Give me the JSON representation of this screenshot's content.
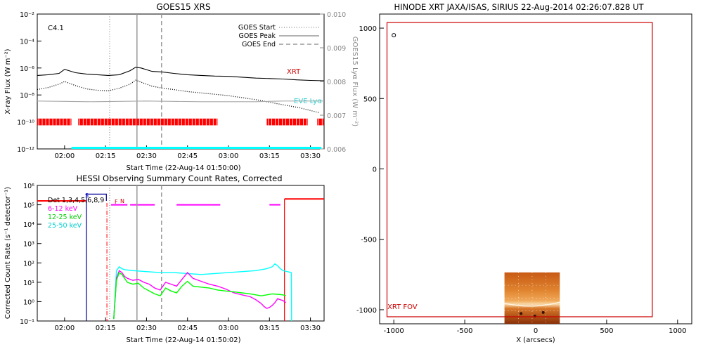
{
  "chart_data": [
    {
      "type": "line",
      "title": "GOES15 XRS",
      "xlabel": "Start Time (22-Aug-14 01:50:00)",
      "ylabel": "X-ray Flux (W m⁻²)",
      "ylabel_right": "GOES15 Lyα Flux (W m⁻²)",
      "class_label": "C4.1",
      "xlim_min": [
        0,
        105
      ],
      "x_tick_labels": [
        "02:00",
        "02:15",
        "02:30",
        "02:45",
        "03:00",
        "03:15",
        "03:30"
      ],
      "x_ticks_min": [
        10,
        25,
        40,
        55,
        70,
        85,
        100
      ],
      "ylim_log": [
        -12,
        -2
      ],
      "y_tick_labels": [
        {
          "label": "10⁻²",
          "exp": -2
        },
        {
          "label": "10⁻⁴",
          "exp": -4
        },
        {
          "label": "10⁻⁶",
          "exp": -6
        },
        {
          "label": "10⁻⁸",
          "exp": -8
        },
        {
          "label": "10⁻¹⁰",
          "exp": -10
        },
        {
          "label": "10⁻¹²",
          "exp": -12
        }
      ],
      "right_ylim": [
        0.006,
        0.01
      ],
      "right_tick_labels": [
        "0.010",
        "0.009",
        "0.008",
        "0.007",
        "0.006"
      ],
      "right_ticks": [
        0.01,
        0.009,
        0.008,
        0.007,
        0.006
      ],
      "legend": [
        {
          "label": "GOES Start",
          "style": "dotted"
        },
        {
          "label": "GOES Peak",
          "style": "solid"
        },
        {
          "label": "GOES End",
          "style": "dashed"
        }
      ],
      "goes_start_min": 26.5,
      "goes_peak_min": 36.5,
      "goes_end_min": 45.5,
      "series": [
        {
          "name": "XRT",
          "color": "#000000",
          "style": "solid",
          "label_color": "#cc0000",
          "x": [
            0,
            4,
            8,
            10,
            14,
            18,
            22,
            26,
            30,
            34,
            36,
            38,
            42,
            46,
            50,
            55,
            60,
            65,
            70,
            75,
            80,
            85,
            90,
            95,
            100,
            105
          ],
          "log_y": [
            -6.55,
            -6.5,
            -6.4,
            -6.1,
            -6.35,
            -6.45,
            -6.5,
            -6.55,
            -6.5,
            -6.2,
            -5.95,
            -6.0,
            -6.25,
            -6.3,
            -6.4,
            -6.5,
            -6.55,
            -6.6,
            -6.62,
            -6.68,
            -6.75,
            -6.78,
            -6.82,
            -6.88,
            -6.92,
            -6.95
          ]
        },
        {
          "name": "goes_long",
          "color": "#000000",
          "style": "dotted",
          "x": [
            0,
            4,
            8,
            10,
            14,
            18,
            22,
            26,
            30,
            34,
            36,
            38,
            42,
            46,
            50,
            55,
            60,
            65,
            70,
            75,
            80,
            84,
            88,
            92,
            96,
            100,
            103
          ],
          "log_y": [
            -7.6,
            -7.45,
            -7.2,
            -7.0,
            -7.3,
            -7.55,
            -7.65,
            -7.7,
            -7.5,
            -7.2,
            -6.9,
            -7.05,
            -7.35,
            -7.5,
            -7.6,
            -7.75,
            -7.85,
            -7.95,
            -8.05,
            -8.2,
            -8.35,
            -8.5,
            -8.65,
            -8.8,
            -8.95,
            -9.15,
            -9.3
          ]
        },
        {
          "name": "EVE Lyα",
          "color": "#aaaaaa",
          "style": "solid",
          "label_color": "#33cccc",
          "x": [
            0,
            20,
            40,
            60,
            80,
            90,
            100,
            105
          ],
          "log_y": [
            -8.45,
            -8.5,
            -8.45,
            -8.5,
            -8.5,
            -8.45,
            -8.45,
            -8.45
          ]
        }
      ],
      "eclipse_segments_min": [
        [
          0,
          12.5
        ],
        [
          15,
          66
        ],
        [
          84,
          99
        ],
        [
          102.5,
          105
        ]
      ],
      "cyan_baseline_segments_min": [
        [
          12.5,
          104
        ]
      ],
      "segment_colors": {
        "eclipse": "#ff0000",
        "baseline": "#00ffff"
      }
    },
    {
      "type": "line",
      "title": "HESSI Observing Summary Count Rates, Corrected",
      "xlabel": "Start Time (22-Aug-14 01:50:02)",
      "ylabel": "Corrected Count Rate (s⁻¹ detector⁻¹)",
      "xlim_min": [
        0,
        105
      ],
      "x_tick_labels": [
        "02:00",
        "02:15",
        "02:30",
        "02:45",
        "03:00",
        "03:15",
        "03:30"
      ],
      "x_ticks_min": [
        10,
        25,
        40,
        55,
        70,
        85,
        100
      ],
      "ylim_log": [
        -1,
        6
      ],
      "y_tick_labels": [
        {
          "label": "10⁶",
          "exp": 6
        },
        {
          "label": "10⁵",
          "exp": 5
        },
        {
          "label": "10⁴",
          "exp": 4
        },
        {
          "label": "10³",
          "exp": 3
        },
        {
          "label": "10²",
          "exp": 2
        },
        {
          "label": "10¹",
          "exp": 1
        },
        {
          "label": "10⁰",
          "exp": 0
        },
        {
          "label": "10⁻¹",
          "exp": -1
        }
      ],
      "detectors": "Det 1,3,4,5,6,8,9",
      "flags": {
        "S": "S",
        "F": "F",
        "N": "N"
      },
      "goes_start_min": 26.5,
      "goes_peak_min": 36.5,
      "goes_end_min": 45.5,
      "legend": [
        {
          "label": "6-12 keV",
          "color": "#ff00ff"
        },
        {
          "label": "12-25 keV",
          "color": "#00ff00"
        },
        {
          "label": "25-50 keV",
          "color": "#00ffff"
        }
      ],
      "series": [
        {
          "name": "6-12 keV",
          "color": "#ff00ff",
          "x": [
            28,
            29,
            30,
            31,
            32,
            33,
            35,
            37,
            39,
            41,
            43,
            45,
            47,
            49,
            51,
            53,
            55,
            57,
            60,
            63,
            66,
            69,
            72,
            75,
            78,
            80,
            82,
            83,
            84,
            85,
            86,
            87,
            88,
            89,
            90,
            91
          ],
          "log_y": [
            -0.9,
            1.2,
            1.6,
            1.5,
            1.3,
            1.2,
            1.1,
            1.15,
            1.0,
            0.9,
            0.7,
            0.6,
            1.0,
            0.9,
            0.8,
            1.15,
            1.5,
            1.2,
            1.05,
            0.9,
            0.8,
            0.65,
            0.45,
            0.35,
            0.25,
            0.1,
            -0.1,
            -0.25,
            -0.35,
            -0.3,
            -0.2,
            -0.05,
            0.15,
            0.1,
            0.05,
            -0.05
          ]
        },
        {
          "name": "12-25 keV",
          "color": "#00ff00",
          "x": [
            28,
            29,
            30,
            31,
            32,
            33,
            35,
            37,
            39,
            41,
            43,
            45,
            47,
            49,
            51,
            53,
            55,
            57,
            60,
            63,
            66,
            69,
            72,
            75,
            78,
            80,
            82,
            84,
            86,
            88,
            90,
            91
          ],
          "log_y": [
            -0.9,
            1.1,
            1.5,
            1.4,
            1.2,
            1.0,
            0.9,
            0.95,
            0.7,
            0.55,
            0.4,
            0.3,
            0.7,
            0.55,
            0.45,
            0.8,
            1.05,
            0.8,
            0.75,
            0.7,
            0.6,
            0.55,
            0.5,
            0.45,
            0.4,
            0.35,
            0.3,
            0.35,
            0.4,
            0.38,
            0.35,
            0.3
          ]
        },
        {
          "name": "25-50 keV",
          "color": "#00ffff",
          "x": [
            28,
            29,
            30,
            31,
            32,
            35,
            40,
            45,
            50,
            55,
            60,
            65,
            70,
            75,
            80,
            84,
            86,
            87,
            88,
            89,
            90,
            93,
            93.1
          ],
          "log_y": [
            -0.9,
            1.6,
            1.8,
            1.7,
            1.65,
            1.6,
            1.55,
            1.5,
            1.5,
            1.45,
            1.4,
            1.45,
            1.5,
            1.55,
            1.6,
            1.7,
            1.8,
            1.95,
            1.85,
            1.7,
            1.6,
            1.5,
            -1.0
          ]
        }
      ],
      "red_state_segments": [
        {
          "x0": 0,
          "x1": 18,
          "log_y": 5.2
        },
        {
          "x0": 90.5,
          "x1": 105,
          "log_y": 5.3
        }
      ],
      "magenta_flag_segments": [
        [
          27,
          33
        ],
        [
          34,
          43
        ],
        [
          51,
          67
        ],
        [
          85,
          89
        ]
      ],
      "blue_step_x_min": 18,
      "red_dashdot_x_min": 25.5,
      "red_step_x_min": 90.5
    },
    {
      "type": "image",
      "title": "HINODE XRT JAXA/ISAS, SIRIUS 22-Aug-2014 02:26:07.828 UT",
      "xlabel": "X (arcsecs)",
      "ylabel": "",
      "xlim": [
        -1100,
        1100
      ],
      "ylim": [
        -1100,
        1100
      ],
      "x_tick_labels": [
        "-1000",
        "-500",
        "0",
        "500",
        "1000"
      ],
      "x_ticks": [
        -1000,
        -500,
        0,
        500,
        1000
      ],
      "y_tick_labels": [
        "1000",
        "500",
        "0",
        "-500",
        "-1000"
      ],
      "y_ticks": [
        1000,
        500,
        0,
        -500,
        -1000
      ],
      "fov_label": "XRT FOV",
      "fov_box_arcsec": {
        "x0": -1048,
        "x1": 822,
        "y0": -1050,
        "y1": 1040
      },
      "image_box_arcsec": {
        "x0": -220,
        "x1": 170,
        "y0": -1100,
        "y1": -735
      },
      "limb_marker_arcsec": {
        "x": -1000,
        "y": 950
      },
      "fov_color": "#cc0000"
    }
  ]
}
